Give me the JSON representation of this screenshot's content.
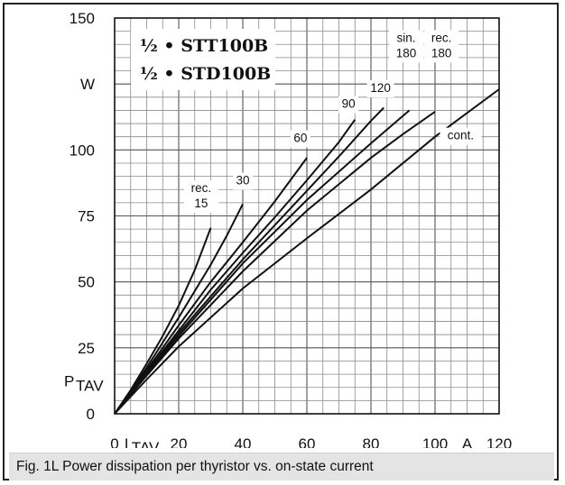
{
  "caption": "Fig. 1L Power dissipation per thyristor vs. on-state current",
  "models": [
    "½ • STT100B",
    "½ • STD100B"
  ],
  "chart_data": {
    "type": "line",
    "xlim": [
      0,
      120
    ],
    "ylim": [
      0,
      150
    ],
    "grid": true,
    "x_axis": {
      "label": "I",
      "label_sub": "TAV",
      "unit": "A",
      "ticks": [
        0,
        20,
        40,
        60,
        80,
        100,
        120
      ],
      "tick_labels": [
        "0",
        "20",
        "40",
        "60",
        "80",
        "100",
        "120"
      ]
    },
    "y_axis": {
      "label": "P",
      "label_sub": "TAV",
      "unit": "W",
      "ticks": [
        0,
        25,
        50,
        75,
        100,
        150
      ],
      "tick_labels": [
        "0",
        "25",
        "50",
        "75",
        "100",
        "150"
      ]
    },
    "series": [
      {
        "name": "rec. 15",
        "label_lines": [
          "rec.",
          "15"
        ],
        "label_at": [
          27,
          84
        ],
        "points": [
          [
            0,
            0
          ],
          [
            5,
            9
          ],
          [
            10,
            19
          ],
          [
            15,
            29.5
          ],
          [
            20,
            41
          ],
          [
            25,
            54.5
          ],
          [
            30,
            70.5
          ]
        ]
      },
      {
        "name": "30",
        "label_lines": [
          "30"
        ],
        "label_at": [
          40,
          87
        ],
        "points": [
          [
            0,
            0
          ],
          [
            5,
            8.5
          ],
          [
            10,
            17.5
          ],
          [
            20,
            36.5
          ],
          [
            30,
            56.5
          ],
          [
            35,
            67.5
          ],
          [
            40,
            79.5
          ]
        ]
      },
      {
        "name": "60",
        "label_lines": [
          "60"
        ],
        "label_at": [
          58,
          103
        ],
        "points": [
          [
            0,
            0
          ],
          [
            10,
            16.5
          ],
          [
            20,
            33.5
          ],
          [
            30,
            50
          ],
          [
            40,
            65
          ],
          [
            50,
            80.5
          ],
          [
            60,
            97
          ]
        ]
      },
      {
        "name": "90",
        "label_lines": [
          "90"
        ],
        "label_at": [
          73,
          116
        ],
        "points": [
          [
            0,
            0
          ],
          [
            10,
            16
          ],
          [
            20,
            31.5
          ],
          [
            30,
            47
          ],
          [
            40,
            61
          ],
          [
            50,
            74.5
          ],
          [
            60,
            88.5
          ],
          [
            70,
            103
          ],
          [
            75,
            111.5
          ]
        ]
      },
      {
        "name": "120",
        "label_lines": [
          "120"
        ],
        "label_at": [
          83,
          122
        ],
        "points": [
          [
            0,
            0
          ],
          [
            10,
            15.5
          ],
          [
            20,
            30.5
          ],
          [
            40,
            58.5
          ],
          [
            60,
            84.5
          ],
          [
            70,
            97.5
          ],
          [
            80,
            111
          ],
          [
            84,
            116
          ]
        ]
      },
      {
        "name": "sin. 180",
        "label_lines": [
          "sin.",
          "180"
        ],
        "label_at": [
          91,
          141
        ],
        "points": [
          [
            0,
            0
          ],
          [
            10,
            15
          ],
          [
            20,
            29.5
          ],
          [
            40,
            57
          ],
          [
            60,
            81
          ],
          [
            80,
            102.5
          ],
          [
            92,
            115
          ]
        ]
      },
      {
        "name": "rec. 180",
        "label_lines": [
          "rec.",
          "180"
        ],
        "label_at": [
          102,
          141
        ],
        "points": [
          [
            0,
            0
          ],
          [
            10,
            14.5
          ],
          [
            20,
            28.5
          ],
          [
            40,
            54
          ],
          [
            60,
            77
          ],
          [
            80,
            97
          ],
          [
            90,
            106
          ],
          [
            100,
            114.5
          ]
        ]
      },
      {
        "name": "cont.",
        "label_lines": [
          "cont."
        ],
        "label_at": [
          108,
          104
        ],
        "points": [
          [
            0,
            0
          ],
          [
            10,
            13
          ],
          [
            20,
            25.5
          ],
          [
            40,
            47.5
          ],
          [
            60,
            66.5
          ],
          [
            80,
            85
          ],
          [
            100,
            105
          ],
          [
            120,
            123
          ]
        ]
      }
    ]
  }
}
